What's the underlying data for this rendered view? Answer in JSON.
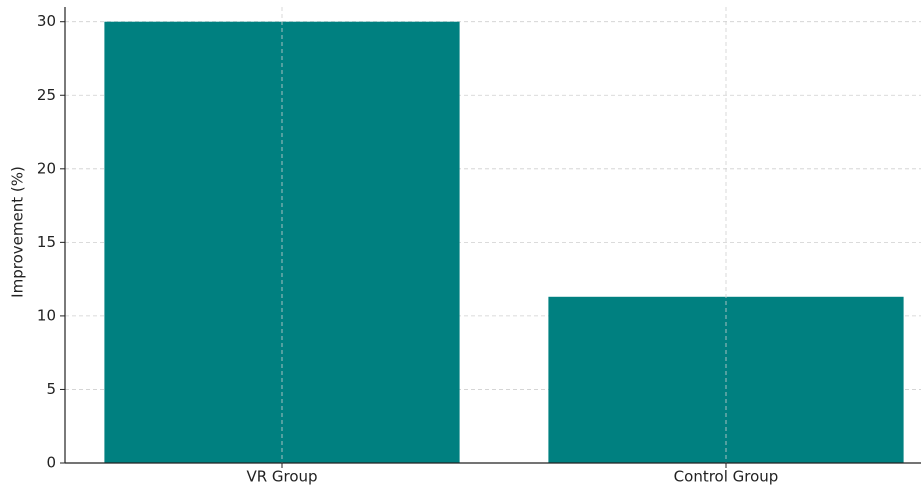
{
  "chart_data": {
    "type": "bar",
    "y_label": "Improvement (%)",
    "categories": [
      "VR Group",
      "Control Group"
    ],
    "values": [
      30,
      11.3
    ],
    "color": "#008080",
    "ylim": [
      0,
      31
    ],
    "yticks": [
      0,
      5,
      10,
      15,
      20,
      25,
      30
    ],
    "grid": true
  }
}
